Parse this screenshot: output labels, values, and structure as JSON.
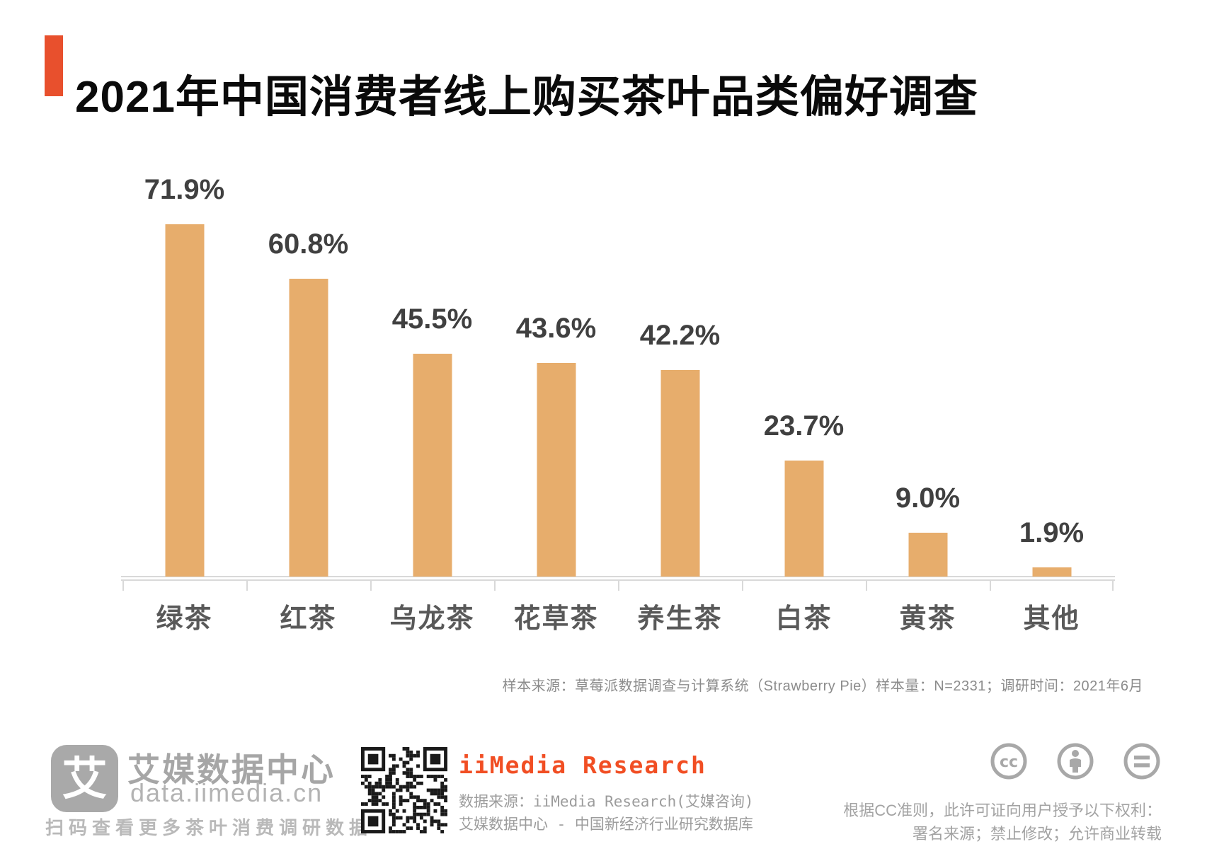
{
  "title": "2021年中国消费者线上购买茶叶品类偏好调查",
  "chart_data": {
    "type": "bar",
    "title": "2021年中国消费者线上购买茶叶品类偏好调查",
    "categories": [
      "绿茶",
      "红茶",
      "乌龙茶",
      "花草茶",
      "养生茶",
      "白茶",
      "黄茶",
      "其他"
    ],
    "values": [
      71.9,
      60.8,
      45.5,
      43.6,
      42.2,
      23.7,
      9.0,
      1.9
    ],
    "value_labels": [
      "71.9%",
      "60.8%",
      "45.5%",
      "43.6%",
      "42.2%",
      "23.7%",
      "9.0%",
      "1.9%"
    ],
    "xlabel": "",
    "ylabel": "",
    "ylim": [
      0,
      80
    ],
    "grid": false,
    "legend": false,
    "bar_color": "#e7ad6c",
    "value_label_color": "#404040",
    "category_label_color": "#595959"
  },
  "source_note": "样本来源：草莓派数据调查与计算系统（Strawberry Pie）样本量：N=2331；调研时间：2021年6月",
  "footer": {
    "logo_glyph": "艾",
    "logo_name": "艾媒数据中心",
    "logo_domain": "data.iimedia.cn",
    "logo_tagline": "扫码查看更多茶叶消费调研数据",
    "brand_name": "iiMedia Research",
    "data_source_line1": "数据来源：iiMedia Research(艾媒咨询)",
    "data_source_line2": "艾媒数据中心 - 中国新经济行业研究数据库",
    "license_line1": "根据CC准则，此许可证向用户授予以下权利：",
    "license_line2": "署名来源；禁止修改；允许商业转载"
  },
  "colors": {
    "accent": "#e8502d",
    "bar": "#e7ad6c",
    "brand_orange": "#f14e23",
    "axis_gray": "#d9d9d9",
    "footer_gray": "#a6a6a6"
  }
}
